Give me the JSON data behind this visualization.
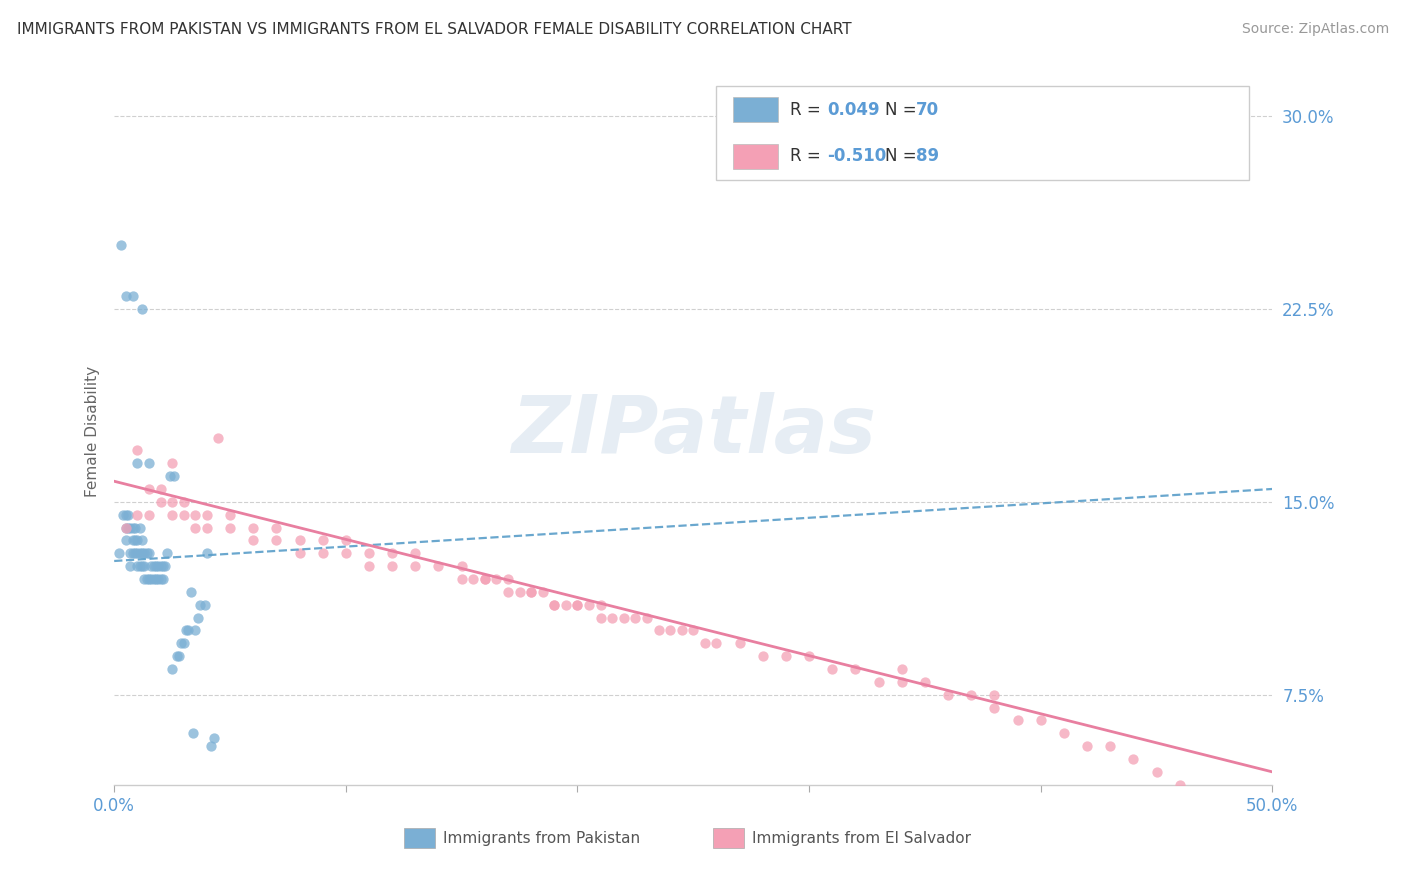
{
  "title": "IMMIGRANTS FROM PAKISTAN VS IMMIGRANTS FROM EL SALVADOR FEMALE DISABILITY CORRELATION CHART",
  "source": "Source: ZipAtlas.com",
  "ylabel": "Female Disability",
  "xlim": [
    0.0,
    0.5
  ],
  "ylim": [
    0.04,
    0.315
  ],
  "x_ticks": [
    0.0,
    0.1,
    0.2,
    0.3,
    0.4,
    0.5
  ],
  "x_tick_labels": [
    "0.0%",
    "",
    "",
    "",
    "",
    "50.0%"
  ],
  "y_ticks": [
    0.075,
    0.15,
    0.225,
    0.3
  ],
  "y_tick_labels": [
    "7.5%",
    "15.0%",
    "22.5%",
    "30.0%"
  ],
  "r_pakistan": 0.049,
  "n_pakistan": 70,
  "r_salvador": -0.51,
  "n_salvador": 89,
  "color_pakistan": "#7bafd4",
  "color_salvador": "#f4a0b5",
  "trendline_pakistan": "#5a9ec9",
  "trendline_salvador": "#e87fa0",
  "legend_label_1": "Immigrants from Pakistan",
  "legend_label_2": "Immigrants from El Salvador",
  "watermark": "ZIPatlas",
  "background_color": "#ffffff",
  "grid_color": "#d0d0d0",
  "title_color": "#333333",
  "axis_color": "#5b9bd5",
  "pk_x": [
    0.002,
    0.003,
    0.004,
    0.005,
    0.005,
    0.005,
    0.006,
    0.006,
    0.007,
    0.007,
    0.007,
    0.008,
    0.008,
    0.008,
    0.009,
    0.009,
    0.009,
    0.01,
    0.01,
    0.01,
    0.011,
    0.011,
    0.011,
    0.012,
    0.012,
    0.012,
    0.013,
    0.013,
    0.013,
    0.014,
    0.014,
    0.015,
    0.015,
    0.016,
    0.016,
    0.017,
    0.017,
    0.018,
    0.018,
    0.019,
    0.019,
    0.02,
    0.02,
    0.021,
    0.021,
    0.022,
    0.023,
    0.024,
    0.025,
    0.026,
    0.027,
    0.028,
    0.029,
    0.03,
    0.031,
    0.032,
    0.033,
    0.034,
    0.035,
    0.036,
    0.037,
    0.039,
    0.04,
    0.042,
    0.043,
    0.01,
    0.012,
    0.005,
    0.008,
    0.015
  ],
  "pk_y": [
    0.13,
    0.25,
    0.145,
    0.135,
    0.14,
    0.145,
    0.14,
    0.145,
    0.125,
    0.13,
    0.14,
    0.13,
    0.135,
    0.14,
    0.13,
    0.135,
    0.14,
    0.125,
    0.13,
    0.135,
    0.125,
    0.13,
    0.14,
    0.125,
    0.13,
    0.135,
    0.12,
    0.125,
    0.13,
    0.12,
    0.13,
    0.12,
    0.13,
    0.12,
    0.125,
    0.12,
    0.125,
    0.12,
    0.125,
    0.12,
    0.125,
    0.12,
    0.125,
    0.12,
    0.125,
    0.125,
    0.13,
    0.16,
    0.085,
    0.16,
    0.09,
    0.09,
    0.095,
    0.095,
    0.1,
    0.1,
    0.115,
    0.06,
    0.1,
    0.105,
    0.11,
    0.11,
    0.13,
    0.055,
    0.058,
    0.165,
    0.225,
    0.23,
    0.23,
    0.165
  ],
  "sv_x": [
    0.005,
    0.01,
    0.015,
    0.02,
    0.02,
    0.025,
    0.025,
    0.03,
    0.03,
    0.035,
    0.035,
    0.04,
    0.04,
    0.045,
    0.05,
    0.05,
    0.06,
    0.06,
    0.07,
    0.07,
    0.08,
    0.08,
    0.09,
    0.09,
    0.1,
    0.1,
    0.11,
    0.11,
    0.12,
    0.12,
    0.13,
    0.13,
    0.14,
    0.15,
    0.155,
    0.16,
    0.165,
    0.17,
    0.175,
    0.18,
    0.185,
    0.19,
    0.195,
    0.2,
    0.205,
    0.21,
    0.215,
    0.22,
    0.225,
    0.23,
    0.235,
    0.24,
    0.245,
    0.25,
    0.255,
    0.26,
    0.27,
    0.28,
    0.29,
    0.3,
    0.31,
    0.32,
    0.33,
    0.34,
    0.34,
    0.35,
    0.36,
    0.37,
    0.38,
    0.38,
    0.39,
    0.4,
    0.41,
    0.42,
    0.43,
    0.44,
    0.45,
    0.46,
    0.47,
    0.01,
    0.015,
    0.025,
    0.15,
    0.16,
    0.17,
    0.18,
    0.19,
    0.2,
    0.21
  ],
  "sv_y": [
    0.14,
    0.17,
    0.155,
    0.15,
    0.155,
    0.145,
    0.15,
    0.145,
    0.15,
    0.14,
    0.145,
    0.14,
    0.145,
    0.175,
    0.14,
    0.145,
    0.135,
    0.14,
    0.135,
    0.14,
    0.13,
    0.135,
    0.13,
    0.135,
    0.13,
    0.135,
    0.125,
    0.13,
    0.125,
    0.13,
    0.125,
    0.13,
    0.125,
    0.125,
    0.12,
    0.12,
    0.12,
    0.12,
    0.115,
    0.115,
    0.115,
    0.11,
    0.11,
    0.11,
    0.11,
    0.11,
    0.105,
    0.105,
    0.105,
    0.105,
    0.1,
    0.1,
    0.1,
    0.1,
    0.095,
    0.095,
    0.095,
    0.09,
    0.09,
    0.09,
    0.085,
    0.085,
    0.08,
    0.08,
    0.085,
    0.08,
    0.075,
    0.075,
    0.07,
    0.075,
    0.065,
    0.065,
    0.06,
    0.055,
    0.055,
    0.05,
    0.045,
    0.04,
    0.035,
    0.145,
    0.145,
    0.165,
    0.12,
    0.12,
    0.115,
    0.115,
    0.11,
    0.11,
    0.105
  ]
}
